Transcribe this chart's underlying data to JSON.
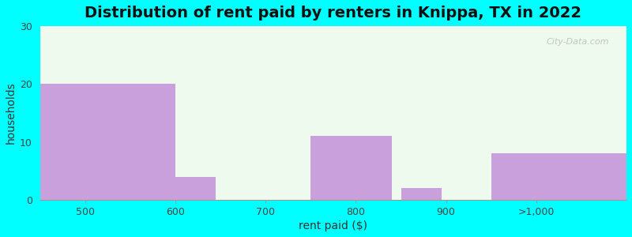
{
  "title": "Distribution of rent paid by renters in Knippa, TX in 2022",
  "categories": [
    "500",
    "600",
    "700",
    "800",
    "900",
    ">1,000"
  ],
  "values": [
    20,
    4,
    0,
    11,
    2,
    8
  ],
  "bar_color": "#C9A0DC",
  "xlabel": "rent paid ($)",
  "ylabel": "households",
  "ylim": [
    0,
    30
  ],
  "yticks": [
    0,
    10,
    20,
    30
  ],
  "bg_color_plot": "#EEFAEE",
  "bg_color_fig": "#00FFFF",
  "title_fontsize": 14,
  "axis_label_fontsize": 10,
  "tick_fontsize": 9,
  "watermark_text": "City-Data.com",
  "tick_positions": [
    0,
    1,
    2,
    3,
    4,
    5
  ],
  "bar_lefts": [
    0.0,
    1.0,
    2.0,
    3.0,
    4.0,
    5.0
  ],
  "bar_widths": [
    1.0,
    0.5,
    1.0,
    0.5,
    0.5,
    1.0
  ]
}
